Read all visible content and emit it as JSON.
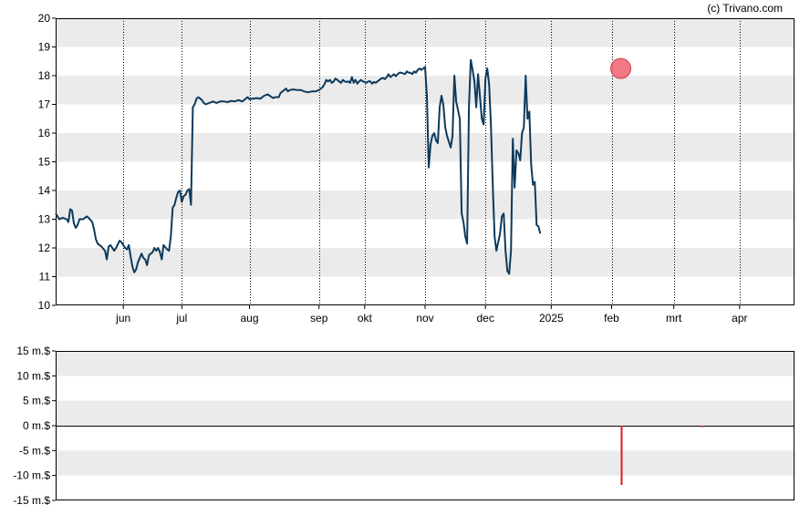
{
  "credit": "(c) Trivano.com",
  "colors": {
    "price_line": "#0d3a5c",
    "band": "#ebebeb",
    "marker": "#f06070",
    "volume_bar": "#e0191e",
    "axis": "#000000"
  },
  "chart_data": [
    {
      "type": "line",
      "ylim": [
        10,
        20
      ],
      "y_ticks": [
        "10",
        "11",
        "12",
        "13",
        "14",
        "15",
        "16",
        "17",
        "18",
        "19",
        "20"
      ],
      "x_months": [
        "jun",
        "jul",
        "aug",
        "sep",
        "okt",
        "nov",
        "dec",
        "2025",
        "feb",
        "mrt",
        "apr"
      ],
      "x_tick_days": [
        25,
        57,
        94,
        132,
        157,
        190,
        223,
        259,
        292,
        326,
        362
      ],
      "x_range_days": [
        -12,
        392
      ],
      "grid": "vertical dotted at month ticks, alternating horizontal bands",
      "marker": {
        "x_day": 297,
        "y": 18.25
      },
      "series": [
        {
          "points": [
            [
              -12,
              13.2
            ],
            [
              -10,
              13.0
            ],
            [
              -8,
              13.05
            ],
            [
              -6,
              13.0
            ],
            [
              -5,
              12.9
            ],
            [
              -4,
              13.35
            ],
            [
              -3,
              13.3
            ],
            [
              -2,
              12.85
            ],
            [
              -1,
              12.7
            ],
            [
              0,
              12.8
            ],
            [
              1,
              13.0
            ],
            [
              3,
              13.0
            ],
            [
              5,
              13.1
            ],
            [
              6,
              13.05
            ],
            [
              8,
              12.9
            ],
            [
              9,
              12.65
            ],
            [
              10,
              12.3
            ],
            [
              11,
              12.15
            ],
            [
              13,
              12.05
            ],
            [
              15,
              11.9
            ],
            [
              16,
              11.6
            ],
            [
              17,
              12.05
            ],
            [
              18,
              12.1
            ],
            [
              20,
              11.9
            ],
            [
              21,
              12.0
            ],
            [
              23,
              12.25
            ],
            [
              24,
              12.2
            ],
            [
              26,
              12.0
            ],
            [
              27,
              11.95
            ],
            [
              28,
              12.1
            ],
            [
              29,
              11.7
            ],
            [
              30,
              11.35
            ],
            [
              31,
              11.15
            ],
            [
              32,
              11.25
            ],
            [
              33,
              11.5
            ],
            [
              35,
              11.8
            ],
            [
              36,
              11.65
            ],
            [
              37,
              11.6
            ],
            [
              38,
              11.4
            ],
            [
              39,
              11.75
            ],
            [
              41,
              11.85
            ],
            [
              42,
              12.0
            ],
            [
              43,
              11.9
            ],
            [
              44,
              12.0
            ],
            [
              45,
              11.85
            ],
            [
              46,
              11.6
            ],
            [
              47,
              12.1
            ],
            [
              49,
              11.95
            ],
            [
              50,
              11.9
            ],
            [
              51,
              12.4
            ],
            [
              52,
              13.4
            ],
            [
              53,
              13.5
            ],
            [
              54,
              13.75
            ],
            [
              55,
              13.95
            ],
            [
              56,
              14.0
            ],
            [
              57,
              13.6
            ],
            [
              58,
              13.8
            ],
            [
              59,
              13.85
            ],
            [
              60,
              14.0
            ],
            [
              61,
              14.05
            ],
            [
              62,
              13.5
            ],
            [
              63,
              16.9
            ],
            [
              64,
              17.0
            ],
            [
              65,
              17.2
            ],
            [
              66,
              17.25
            ],
            [
              67,
              17.2
            ],
            [
              68,
              17.15
            ],
            [
              69,
              17.05
            ],
            [
              70,
              17.0
            ],
            [
              72,
              17.05
            ],
            [
              74,
              17.1
            ],
            [
              76,
              17.05
            ],
            [
              78,
              17.1
            ],
            [
              80,
              17.1
            ],
            [
              82,
              17.08
            ],
            [
              84,
              17.12
            ],
            [
              86,
              17.1
            ],
            [
              88,
              17.15
            ],
            [
              90,
              17.1
            ],
            [
              92,
              17.2
            ],
            [
              93,
              17.25
            ],
            [
              94,
              17.18
            ],
            [
              96,
              17.2
            ],
            [
              98,
              17.22
            ],
            [
              100,
              17.2
            ],
            [
              102,
              17.3
            ],
            [
              104,
              17.35
            ],
            [
              105,
              17.3
            ],
            [
              107,
              17.22
            ],
            [
              108,
              17.25
            ],
            [
              110,
              17.25
            ],
            [
              111,
              17.4
            ],
            [
              113,
              17.5
            ],
            [
              114,
              17.55
            ],
            [
              115,
              17.45
            ],
            [
              116,
              17.5
            ],
            [
              118,
              17.52
            ],
            [
              120,
              17.5
            ],
            [
              122,
              17.5
            ],
            [
              124,
              17.45
            ],
            [
              126,
              17.42
            ],
            [
              128,
              17.45
            ],
            [
              130,
              17.45
            ],
            [
              132,
              17.5
            ],
            [
              134,
              17.6
            ],
            [
              135,
              17.7
            ],
            [
              136,
              17.85
            ],
            [
              137,
              17.8
            ],
            [
              138,
              17.85
            ],
            [
              139,
              17.75
            ],
            [
              140,
              17.8
            ],
            [
              141,
              17.9
            ],
            [
              142,
              17.85
            ],
            [
              143,
              17.8
            ],
            [
              144,
              17.75
            ],
            [
              145,
              17.85
            ],
            [
              146,
              17.8
            ],
            [
              147,
              17.78
            ],
            [
              148,
              17.8
            ],
            [
              149,
              17.75
            ],
            [
              150,
              17.95
            ],
            [
              151,
              17.75
            ],
            [
              152,
              17.85
            ],
            [
              153,
              17.72
            ],
            [
              154,
              17.8
            ],
            [
              155,
              17.85
            ],
            [
              156,
              17.8
            ],
            [
              157,
              17.78
            ],
            [
              158,
              17.75
            ],
            [
              159,
              17.8
            ],
            [
              160,
              17.8
            ],
            [
              161,
              17.72
            ],
            [
              162,
              17.78
            ],
            [
              163,
              17.75
            ],
            [
              164,
              17.8
            ],
            [
              165,
              17.85
            ],
            [
              166,
              17.9
            ],
            [
              167,
              17.92
            ],
            [
              168,
              17.88
            ],
            [
              169,
              17.95
            ],
            [
              170,
              18.05
            ],
            [
              171,
              17.95
            ],
            [
              172,
              18.0
            ],
            [
              173,
              18.05
            ],
            [
              174,
              17.98
            ],
            [
              175,
              18.05
            ],
            [
              176,
              18.1
            ],
            [
              177,
              18.1
            ],
            [
              178,
              18.08
            ],
            [
              179,
              18.05
            ],
            [
              180,
              18.15
            ],
            [
              181,
              18.1
            ],
            [
              182,
              18.1
            ],
            [
              183,
              18.05
            ],
            [
              184,
              18.15
            ],
            [
              185,
              18.1
            ],
            [
              186,
              18.2
            ],
            [
              187,
              18.25
            ],
            [
              188,
              18.2
            ],
            [
              189,
              18.25
            ],
            [
              190,
              18.3
            ],
            [
              191,
              17.3
            ],
            [
              192,
              14.8
            ],
            [
              193,
              15.6
            ],
            [
              194,
              15.9
            ],
            [
              195,
              16.0
            ],
            [
              196,
              15.75
            ],
            [
              197,
              15.65
            ],
            [
              198,
              16.9
            ],
            [
              199,
              17.3
            ],
            [
              200,
              17.0
            ],
            [
              201,
              16.2
            ],
            [
              202,
              15.9
            ],
            [
              203,
              15.7
            ],
            [
              204,
              15.5
            ],
            [
              205,
              15.9
            ],
            [
              206,
              18.0
            ],
            [
              207,
              17.1
            ],
            [
              208,
              16.8
            ],
            [
              209,
              16.5
            ],
            [
              210,
              13.2
            ],
            [
              211,
              12.9
            ],
            [
              212,
              12.4
            ],
            [
              213,
              12.15
            ],
            [
              214,
              16.9
            ],
            [
              215,
              18.55
            ],
            [
              216,
              18.2
            ],
            [
              217,
              17.8
            ],
            [
              218,
              16.9
            ],
            [
              219,
              18.05
            ],
            [
              220,
              17.3
            ],
            [
              221,
              16.5
            ],
            [
              222,
              16.3
            ],
            [
              223,
              17.9
            ],
            [
              224,
              18.25
            ],
            [
              225,
              17.7
            ],
            [
              226,
              16.3
            ],
            [
              227,
              14.2
            ],
            [
              228,
              12.4
            ],
            [
              229,
              11.9
            ],
            [
              230,
              12.2
            ],
            [
              231,
              12.5
            ],
            [
              232,
              13.1
            ],
            [
              233,
              13.2
            ],
            [
              234,
              11.9
            ],
            [
              235,
              11.2
            ],
            [
              236,
              11.1
            ],
            [
              237,
              11.9
            ],
            [
              238,
              15.8
            ],
            [
              239,
              14.1
            ],
            [
              240,
              15.4
            ],
            [
              241,
              15.3
            ],
            [
              242,
              15.05
            ],
            [
              243,
              16.0
            ],
            [
              244,
              16.2
            ],
            [
              245,
              18.0
            ],
            [
              246,
              16.5
            ],
            [
              247,
              16.75
            ],
            [
              248,
              14.9
            ],
            [
              249,
              14.2
            ],
            [
              250,
              14.3
            ],
            [
              251,
              12.8
            ],
            [
              252,
              12.75
            ],
            [
              253,
              12.5
            ]
          ]
        }
      ]
    },
    {
      "type": "bar",
      "ylim": [
        -15,
        15
      ],
      "y_ticks": [
        "15 m.$",
        "10 m.$",
        "5 m.$",
        "0 m.$",
        "-5 m.$",
        "-10 m.$",
        "-15 m.$"
      ],
      "series": [
        {
          "points": [
            [
              297,
              -11.9
            ],
            [
              341,
              -0.3
            ]
          ]
        }
      ]
    }
  ]
}
